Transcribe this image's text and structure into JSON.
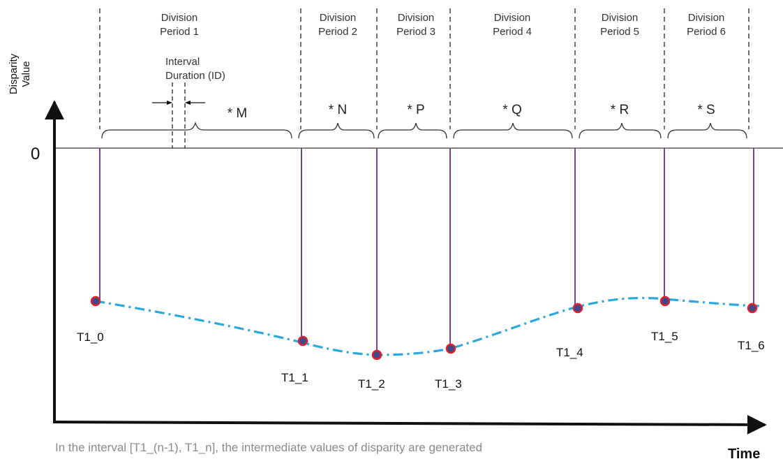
{
  "axes": {
    "y_label_line1": "Disparity",
    "y_label_line2": "Value",
    "zero_label": "0",
    "x_label": "Time"
  },
  "periods": [
    {
      "line1": "Division",
      "line2": "Period 1",
      "symbol": "* M"
    },
    {
      "line1": "Division",
      "line2": "Period 2",
      "symbol": "* N"
    },
    {
      "line1": "Division",
      "line2": "Period 3",
      "symbol": "* P"
    },
    {
      "line1": "Division",
      "line2": "Period 4",
      "symbol": "* Q"
    },
    {
      "line1": "Division",
      "line2": "Period 5",
      "symbol": "* R"
    },
    {
      "line1": "Division",
      "line2": "Period 6",
      "symbol": "* S"
    }
  ],
  "interval_duration": {
    "line1": "Interval",
    "line2": "Duration (ID)"
  },
  "points": [
    "T1_0",
    "T1_1",
    "T1_2",
    "T1_3",
    "T1_4",
    "T1_5",
    "T1_6"
  ],
  "caption": "In the interval [T1_(n-1), T1_n], the intermediate values of disparity are generated",
  "colors": {
    "stem": "#7b3fa0",
    "curve": "#29a8e0",
    "point": "#e0202a",
    "axis": "#111111",
    "dashed": "#333333"
  }
}
